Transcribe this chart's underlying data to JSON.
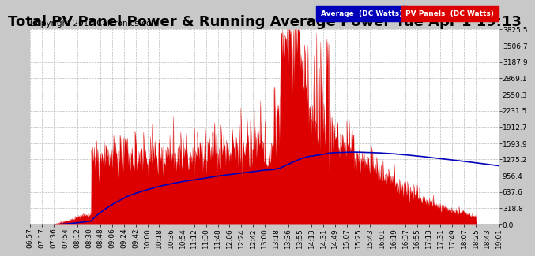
{
  "title": "Total PV Panel Power & Running Average Power Tue Apr 1 19:13",
  "copyright": "Copyright 2014 Cartronics.com",
  "ylabel_right_ticks": [
    0.0,
    318.8,
    637.6,
    956.4,
    1275.2,
    1593.9,
    1912.7,
    2231.5,
    2550.3,
    2869.1,
    3187.9,
    3506.7,
    3825.5
  ],
  "ymax": 3825.5,
  "ymin": 0.0,
  "legend_avg_label": "Average  (DC Watts)",
  "legend_pv_label": "PV Panels  (DC Watts)",
  "legend_avg_color": "#0000bb",
  "legend_pv_color": "#dd0000",
  "background_color": "#c8c8c8",
  "plot_bg_color": "#ffffff",
  "grid_color": "#aaaaaa",
  "title_fontsize": 13,
  "copyright_fontsize": 7.5,
  "tick_label_fontsize": 6.5,
  "xtick_labels": [
    "06:57",
    "07:17",
    "07:36",
    "07:54",
    "08:12",
    "08:30",
    "08:48",
    "09:06",
    "09:24",
    "09:42",
    "10:00",
    "10:18",
    "10:36",
    "10:54",
    "11:12",
    "11:30",
    "11:48",
    "12:06",
    "12:24",
    "12:42",
    "13:00",
    "13:18",
    "13:36",
    "13:55",
    "14:13",
    "14:31",
    "14:49",
    "15:07",
    "15:25",
    "15:43",
    "16:01",
    "16:19",
    "16:37",
    "16:55",
    "17:13",
    "17:31",
    "17:49",
    "18:07",
    "18:25",
    "18:43",
    "19:01"
  ],
  "num_points": 820
}
